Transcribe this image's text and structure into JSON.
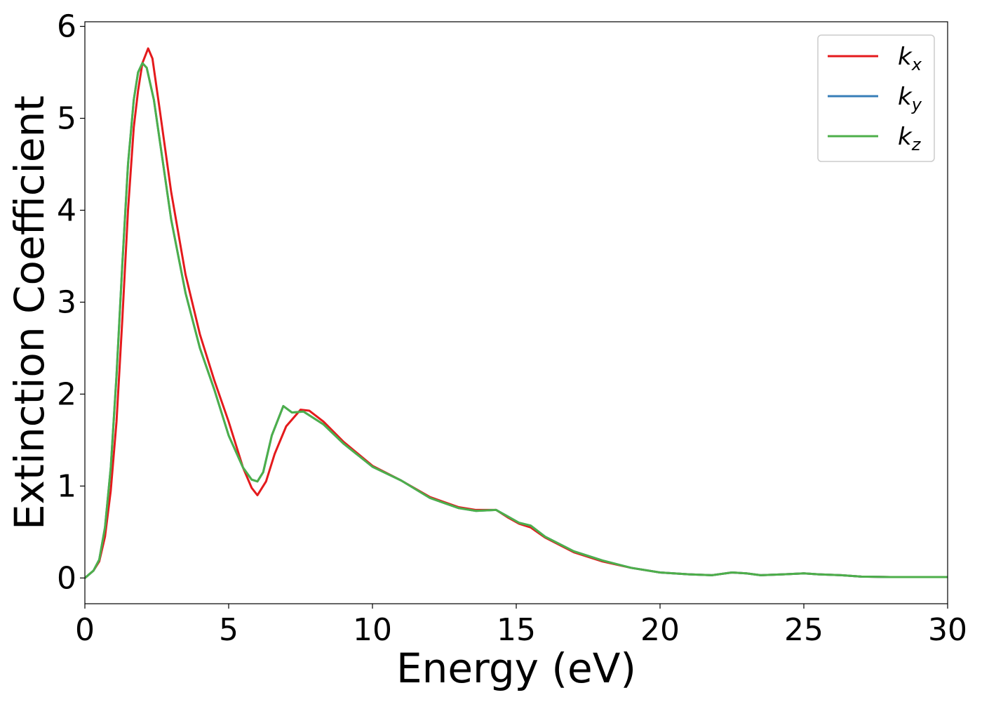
{
  "chart_data": {
    "type": "line",
    "title": "",
    "xlabel": "Energy (eV)",
    "ylabel": "Extinction Coefficient",
    "xlim": [
      0,
      30
    ],
    "ylim": [
      -0.28,
      6.05
    ],
    "xticks": [
      0,
      5,
      10,
      15,
      20,
      25,
      30
    ],
    "yticks": [
      0,
      1,
      2,
      3,
      4,
      5,
      6
    ],
    "grid": false,
    "legend": "top-right",
    "series": [
      {
        "name": "k",
        "subscript": "x",
        "color": "#e41a1c",
        "points": [
          [
            0,
            0
          ],
          [
            0.3,
            0.08
          ],
          [
            0.5,
            0.18
          ],
          [
            0.7,
            0.45
          ],
          [
            0.9,
            0.95
          ],
          [
            1.1,
            1.7
          ],
          [
            1.3,
            2.8
          ],
          [
            1.5,
            4.0
          ],
          [
            1.7,
            4.9
          ],
          [
            1.85,
            5.3
          ],
          [
            2.0,
            5.6
          ],
          [
            2.2,
            5.76
          ],
          [
            2.35,
            5.65
          ],
          [
            2.6,
            5.1
          ],
          [
            3.0,
            4.2
          ],
          [
            3.5,
            3.3
          ],
          [
            4.0,
            2.65
          ],
          [
            4.5,
            2.15
          ],
          [
            5.0,
            1.7
          ],
          [
            5.5,
            1.2
          ],
          [
            5.8,
            0.98
          ],
          [
            6.0,
            0.9
          ],
          [
            6.3,
            1.05
          ],
          [
            6.6,
            1.35
          ],
          [
            7.0,
            1.65
          ],
          [
            7.5,
            1.83
          ],
          [
            7.8,
            1.82
          ],
          [
            8.3,
            1.7
          ],
          [
            9.0,
            1.48
          ],
          [
            10.0,
            1.22
          ],
          [
            11.0,
            1.06
          ],
          [
            12.0,
            0.88
          ],
          [
            13.0,
            0.77
          ],
          [
            13.6,
            0.74
          ],
          [
            14.3,
            0.74
          ],
          [
            14.7,
            0.66
          ],
          [
            15.1,
            0.59
          ],
          [
            15.5,
            0.55
          ],
          [
            16.0,
            0.44
          ],
          [
            17.0,
            0.28
          ],
          [
            18.0,
            0.18
          ],
          [
            19.0,
            0.11
          ],
          [
            20.0,
            0.06
          ],
          [
            21.0,
            0.04
          ],
          [
            21.8,
            0.03
          ],
          [
            22.5,
            0.06
          ],
          [
            23.0,
            0.05
          ],
          [
            23.5,
            0.03
          ],
          [
            24.3,
            0.04
          ],
          [
            25.0,
            0.05
          ],
          [
            25.5,
            0.04
          ],
          [
            26.3,
            0.03
          ],
          [
            27.0,
            0.015
          ],
          [
            28.0,
            0.01
          ],
          [
            30.0,
            0.01
          ]
        ]
      },
      {
        "name": "k",
        "subscript": "y",
        "color": "#377eb8",
        "points": [
          [
            0,
            0
          ],
          [
            0.3,
            0.08
          ],
          [
            0.5,
            0.2
          ],
          [
            0.7,
            0.55
          ],
          [
            0.9,
            1.2
          ],
          [
            1.1,
            2.2
          ],
          [
            1.3,
            3.4
          ],
          [
            1.5,
            4.5
          ],
          [
            1.7,
            5.2
          ],
          [
            1.85,
            5.5
          ],
          [
            2.0,
            5.6
          ],
          [
            2.15,
            5.55
          ],
          [
            2.4,
            5.2
          ],
          [
            3.0,
            3.9
          ],
          [
            3.5,
            3.1
          ],
          [
            4.0,
            2.5
          ],
          [
            4.5,
            2.05
          ],
          [
            5.0,
            1.55
          ],
          [
            5.5,
            1.2
          ],
          [
            5.8,
            1.07
          ],
          [
            6.0,
            1.05
          ],
          [
            6.2,
            1.15
          ],
          [
            6.5,
            1.55
          ],
          [
            6.9,
            1.87
          ],
          [
            7.2,
            1.8
          ],
          [
            7.6,
            1.81
          ],
          [
            8.3,
            1.67
          ],
          [
            9.0,
            1.46
          ],
          [
            10.0,
            1.21
          ],
          [
            11.0,
            1.06
          ],
          [
            12.0,
            0.87
          ],
          [
            13.0,
            0.76
          ],
          [
            13.6,
            0.73
          ],
          [
            14.3,
            0.74
          ],
          [
            14.7,
            0.67
          ],
          [
            15.1,
            0.6
          ],
          [
            15.5,
            0.57
          ],
          [
            16.0,
            0.45
          ],
          [
            17.0,
            0.29
          ],
          [
            18.0,
            0.19
          ],
          [
            19.0,
            0.11
          ],
          [
            20.0,
            0.06
          ],
          [
            21.0,
            0.04
          ],
          [
            21.8,
            0.03
          ],
          [
            22.5,
            0.06
          ],
          [
            23.0,
            0.05
          ],
          [
            23.5,
            0.03
          ],
          [
            24.3,
            0.04
          ],
          [
            25.0,
            0.05
          ],
          [
            25.5,
            0.04
          ],
          [
            26.3,
            0.03
          ],
          [
            27.0,
            0.015
          ],
          [
            28.0,
            0.01
          ],
          [
            30.0,
            0.01
          ]
        ]
      },
      {
        "name": "k",
        "subscript": "z",
        "color": "#4daf4a",
        "points": [
          [
            0,
            0
          ],
          [
            0.3,
            0.08
          ],
          [
            0.5,
            0.2
          ],
          [
            0.7,
            0.55
          ],
          [
            0.9,
            1.2
          ],
          [
            1.1,
            2.2
          ],
          [
            1.3,
            3.4
          ],
          [
            1.5,
            4.5
          ],
          [
            1.7,
            5.2
          ],
          [
            1.85,
            5.5
          ],
          [
            2.0,
            5.6
          ],
          [
            2.15,
            5.55
          ],
          [
            2.4,
            5.2
          ],
          [
            3.0,
            3.9
          ],
          [
            3.5,
            3.1
          ],
          [
            4.0,
            2.5
          ],
          [
            4.5,
            2.05
          ],
          [
            5.0,
            1.55
          ],
          [
            5.5,
            1.2
          ],
          [
            5.8,
            1.07
          ],
          [
            6.0,
            1.05
          ],
          [
            6.2,
            1.15
          ],
          [
            6.5,
            1.55
          ],
          [
            6.9,
            1.87
          ],
          [
            7.2,
            1.8
          ],
          [
            7.6,
            1.81
          ],
          [
            8.3,
            1.67
          ],
          [
            9.0,
            1.46
          ],
          [
            10.0,
            1.21
          ],
          [
            11.0,
            1.06
          ],
          [
            12.0,
            0.87
          ],
          [
            13.0,
            0.76
          ],
          [
            13.6,
            0.73
          ],
          [
            14.3,
            0.74
          ],
          [
            14.7,
            0.67
          ],
          [
            15.1,
            0.6
          ],
          [
            15.5,
            0.57
          ],
          [
            16.0,
            0.45
          ],
          [
            17.0,
            0.29
          ],
          [
            18.0,
            0.19
          ],
          [
            19.0,
            0.11
          ],
          [
            20.0,
            0.06
          ],
          [
            21.0,
            0.04
          ],
          [
            21.8,
            0.03
          ],
          [
            22.5,
            0.06
          ],
          [
            23.0,
            0.05
          ],
          [
            23.5,
            0.03
          ],
          [
            24.3,
            0.04
          ],
          [
            25.0,
            0.05
          ],
          [
            25.5,
            0.04
          ],
          [
            26.3,
            0.03
          ],
          [
            27.0,
            0.015
          ],
          [
            28.0,
            0.01
          ],
          [
            30.0,
            0.01
          ]
        ]
      }
    ]
  }
}
